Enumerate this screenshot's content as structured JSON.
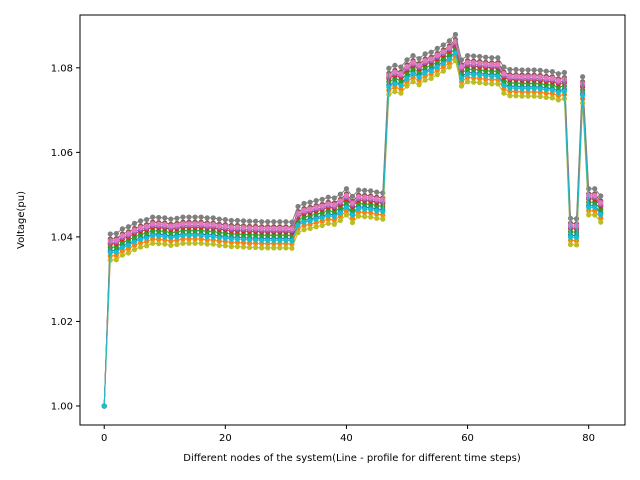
{
  "chart_data": {
    "type": "line",
    "title": "",
    "xlabel": "Different nodes of the system(Line - profile for different time steps)",
    "ylabel": "Voltage(pu)",
    "xlim": [
      -4,
      86
    ],
    "ylim": [
      0.9955,
      1.0925
    ],
    "xticks": [
      0,
      20,
      40,
      60,
      80
    ],
    "yticks": [
      1.0,
      1.02,
      1.04,
      1.06,
      1.08
    ],
    "ytick_labels": [
      "1.00",
      "1.02",
      "1.04",
      "1.06",
      "1.08"
    ],
    "grid": false,
    "legend": "none",
    "marker": "circle",
    "x_start": 0,
    "base_profile": [
      1.0,
      1.0373,
      1.0374,
      1.0385,
      1.039,
      1.0398,
      1.0404,
      1.0407,
      1.0413,
      1.0412,
      1.0411,
      1.0408,
      1.041,
      1.0413,
      1.0413,
      1.0413,
      1.0413,
      1.0411,
      1.0411,
      1.0408,
      1.0407,
      1.0405,
      1.0405,
      1.0404,
      1.0403,
      1.0403,
      1.0402,
      1.0402,
      1.0402,
      1.0402,
      1.0402,
      1.0401,
      1.0438,
      1.0445,
      1.0448,
      1.0452,
      1.0455,
      1.046,
      1.0458,
      1.0467,
      1.048,
      1.0462,
      1.0477,
      1.0476,
      1.0475,
      1.0472,
      1.047,
      1.0765,
      1.0772,
      1.0768,
      1.0785,
      1.0795,
      1.0788,
      1.0799,
      1.0803,
      1.0812,
      1.082,
      1.083,
      1.0845,
      1.0785,
      1.0795,
      1.0794,
      1.0793,
      1.0791,
      1.079,
      1.079,
      1.0768,
      1.0762,
      1.0762,
      1.0761,
      1.0761,
      1.0761,
      1.076,
      1.0758,
      1.0757,
      1.0752,
      1.0755,
      1.041,
      1.0409,
      1.0745,
      1.048,
      1.048,
      1.0463
    ],
    "series": [
      {
        "color": "#1f77b4",
        "offset": -0.0006,
        "width": 1.0
      },
      {
        "color": "#ff7f0e",
        "offset": -0.0018,
        "width": 1.0
      },
      {
        "color": "#2ca02c",
        "offset": 0.0002,
        "width": 1.0
      },
      {
        "color": "#d62728",
        "offset": 0.001,
        "width": 1.0
      },
      {
        "color": "#9467bd",
        "offset": 0.0014,
        "width": 1.0
      },
      {
        "color": "#8c564b",
        "offset": 0.0022,
        "width": 1.0
      },
      {
        "color": "#e377c2",
        "offset": 0.0018,
        "width": 1.0
      },
      {
        "color": "#7f7f7f",
        "offset": 0.0034,
        "width": 1.0
      },
      {
        "color": "#bcbd22",
        "offset": -0.0028,
        "width": 1.0
      },
      {
        "color": "#17becf",
        "offset": -0.001,
        "width": 1.0
      }
    ]
  }
}
